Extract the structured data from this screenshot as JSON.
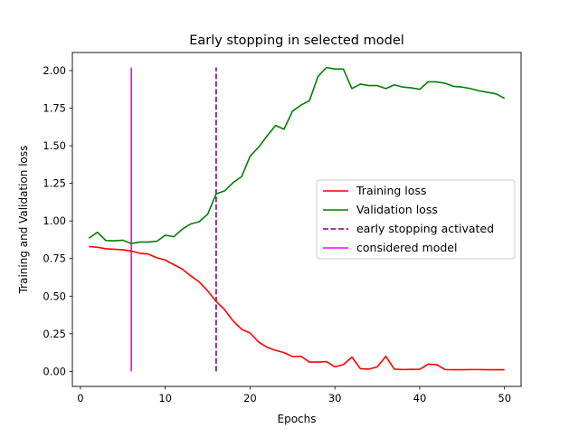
{
  "chart_data": {
    "type": "line",
    "title": "Early stopping in selected model",
    "xlabel": "Epochs",
    "ylabel": "Training and Validation loss",
    "xlim": [
      -0.95,
      51.95
    ],
    "ylim": [
      -0.1,
      2.12
    ],
    "xticks": [
      0,
      10,
      20,
      30,
      40,
      50
    ],
    "xtick_labels": [
      "0",
      "10",
      "20",
      "30",
      "40",
      "50"
    ],
    "yticks": [
      0.0,
      0.25,
      0.5,
      0.75,
      1.0,
      1.25,
      1.5,
      1.75,
      2.0
    ],
    "ytick_labels": [
      "0.00",
      "0.25",
      "0.50",
      "0.75",
      "1.00",
      "1.25",
      "1.50",
      "1.75",
      "2.00"
    ],
    "grid": false,
    "legend_position": "center-right",
    "x": [
      1,
      2,
      3,
      4,
      5,
      6,
      7,
      8,
      9,
      10,
      11,
      12,
      13,
      14,
      15,
      16,
      17,
      18,
      19,
      20,
      21,
      22,
      23,
      24,
      25,
      26,
      27,
      28,
      29,
      30,
      31,
      32,
      33,
      34,
      35,
      36,
      37,
      38,
      39,
      40,
      41,
      42,
      43,
      44,
      45,
      46,
      47,
      48,
      49,
      50
    ],
    "series": [
      {
        "name": "Training loss",
        "color": "#ff0000",
        "values": [
          0.83,
          0.825,
          0.815,
          0.812,
          0.808,
          0.8,
          0.785,
          0.78,
          0.755,
          0.74,
          0.71,
          0.68,
          0.635,
          0.595,
          0.535,
          0.465,
          0.41,
          0.335,
          0.28,
          0.255,
          0.195,
          0.16,
          0.14,
          0.125,
          0.098,
          0.1,
          0.062,
          0.062,
          0.065,
          0.03,
          0.045,
          0.095,
          0.018,
          0.015,
          0.03,
          0.1,
          0.015,
          0.012,
          0.013,
          0.014,
          0.048,
          0.045,
          0.012,
          0.011,
          0.011,
          0.012,
          0.012,
          0.011,
          0.011,
          0.011
        ]
      },
      {
        "name": "Validation loss",
        "color": "#008000",
        "values": [
          0.885,
          0.925,
          0.87,
          0.868,
          0.872,
          0.85,
          0.86,
          0.86,
          0.865,
          0.905,
          0.895,
          0.945,
          0.98,
          0.995,
          1.045,
          1.18,
          1.2,
          1.255,
          1.295,
          1.43,
          1.49,
          1.565,
          1.635,
          1.61,
          1.73,
          1.77,
          1.8,
          1.96,
          2.02,
          2.01,
          2.01,
          1.88,
          1.91,
          1.9,
          1.9,
          1.88,
          1.905,
          1.89,
          1.885,
          1.875,
          1.925,
          1.925,
          1.915,
          1.895,
          1.89,
          1.88,
          1.865,
          1.855,
          1.845,
          1.815
        ]
      }
    ],
    "vlines": [
      {
        "name": "early stopping activated",
        "x": 16,
        "y_range": [
          0.0,
          2.02
        ],
        "color": "#800080",
        "style": "dashed"
      },
      {
        "name": "considered model",
        "x": 6,
        "y_range": [
          0.0,
          2.02
        ],
        "color": "#ff00ff",
        "style": "solid"
      }
    ]
  }
}
